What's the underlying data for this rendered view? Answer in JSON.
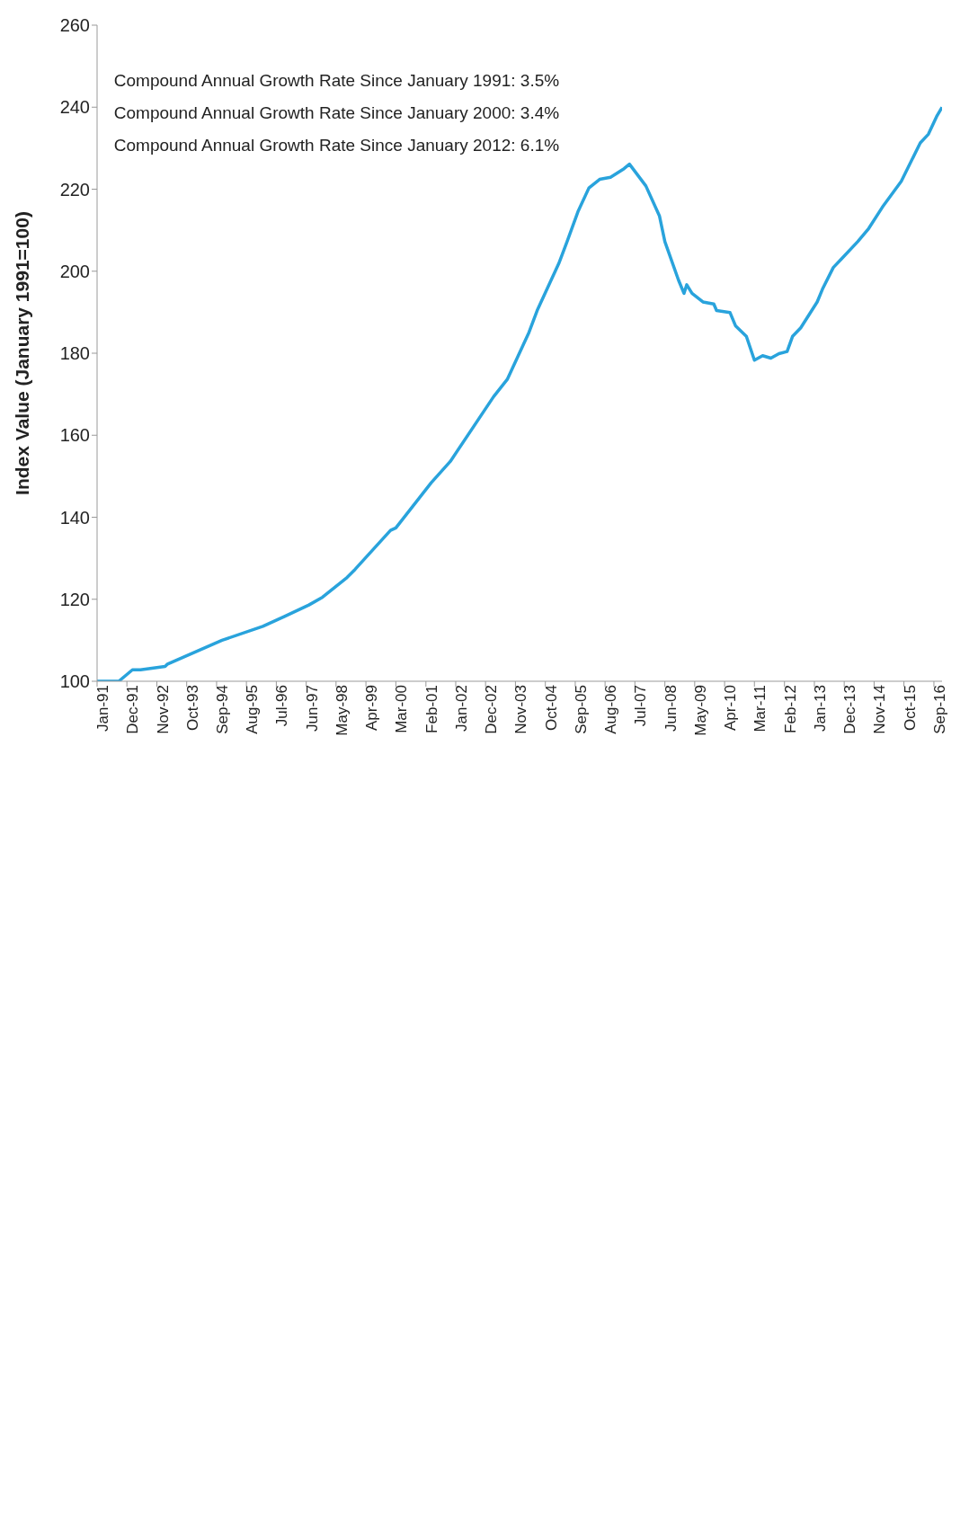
{
  "chart_data": {
    "type": "line",
    "ylabel": "Index Value (January 1991=100)",
    "annotations": [
      "Compound Annual Growth Rate Since January 1991:  3.5%",
      "Compound Annual Growth Rate Since January 2000:  3.4%",
      "Compound Annual Growth Rate Since January 2012:  6.1%"
    ],
    "x": [
      "1991-01",
      "1991-09",
      "1992-02",
      "1992-05",
      "1993-02",
      "1993-03",
      "1994-11",
      "1996-02",
      "1996-10",
      "1997-07",
      "1997-12",
      "1998-09",
      "1998-12",
      "2000-01",
      "2000-03",
      "2001-04",
      "2001-11",
      "2003-03",
      "2003-08",
      "2004-04",
      "2004-07",
      "2005-03",
      "2005-06",
      "2005-10",
      "2006-02",
      "2006-06",
      "2006-10",
      "2007-03",
      "2007-05",
      "2007-11",
      "2008-04",
      "2008-06",
      "2008-11",
      "2009-01",
      "2009-02",
      "2009-04",
      "2009-08",
      "2009-12",
      "2010-01",
      "2010-06",
      "2010-08",
      "2010-12",
      "2011-03",
      "2011-06",
      "2011-09",
      "2011-12",
      "2012-03",
      "2012-05",
      "2012-08",
      "2013-02",
      "2013-04",
      "2013-08",
      "2013-11",
      "2014-05",
      "2014-09",
      "2015-02",
      "2015-09",
      "2016-04",
      "2016-07",
      "2016-10",
      "2016-12"
    ],
    "series": [
      {
        "color": "#29a3dc",
        "values": [
          100,
          100,
          102.8,
          102.8,
          103.6,
          104.2,
          110,
          113.4,
          115.8,
          118.6,
          120.5,
          125.3,
          127.3,
          136.8,
          137.4,
          148.4,
          153.6,
          169.4,
          173.6,
          185.1,
          190.4,
          201.9,
          207.2,
          214.5,
          220.3,
          222.4,
          222.9,
          225,
          226.1,
          220.8,
          213.5,
          207.2,
          197.8,
          194.6,
          196.7,
          194.6,
          192.5,
          192,
          190.4,
          189.9,
          186.7,
          184.1,
          178.3,
          179.4,
          178.8,
          179.9,
          180.4,
          184.1,
          186.2,
          192.5,
          195.6,
          200.9,
          203,
          207.2,
          210.4,
          215.6,
          221.9,
          231.3,
          233.4,
          237.7,
          240
        ]
      }
    ],
    "xlim": [
      "1991-01",
      "2016-12"
    ],
    "xticks": [
      {
        "value": "1991-01",
        "label": "Jan-91"
      },
      {
        "value": "1991-12",
        "label": "Dec-91"
      },
      {
        "value": "1992-11",
        "label": "Nov-92"
      },
      {
        "value": "1993-10",
        "label": "Oct-93"
      },
      {
        "value": "1994-09",
        "label": "Sep-94"
      },
      {
        "value": "1995-08",
        "label": "Aug-95"
      },
      {
        "value": "1996-07",
        "label": "Jul-96"
      },
      {
        "value": "1997-06",
        "label": "Jun-97"
      },
      {
        "value": "1998-05",
        "label": "May-98"
      },
      {
        "value": "1999-04",
        "label": "Apr-99"
      },
      {
        "value": "2000-03",
        "label": "Mar-00"
      },
      {
        "value": "2001-02",
        "label": "Feb-01"
      },
      {
        "value": "2002-01",
        "label": "Jan-02"
      },
      {
        "value": "2002-12",
        "label": "Dec-02"
      },
      {
        "value": "2003-11",
        "label": "Nov-03"
      },
      {
        "value": "2004-10",
        "label": "Oct-04"
      },
      {
        "value": "2005-09",
        "label": "Sep-05"
      },
      {
        "value": "2006-08",
        "label": "Aug-06"
      },
      {
        "value": "2007-07",
        "label": "Jul-07"
      },
      {
        "value": "2008-06",
        "label": "Jun-08"
      },
      {
        "value": "2009-05",
        "label": "May-09"
      },
      {
        "value": "2010-04",
        "label": "Apr-10"
      },
      {
        "value": "2011-03",
        "label": "Mar-11"
      },
      {
        "value": "2012-02",
        "label": "Feb-12"
      },
      {
        "value": "2013-01",
        "label": "Jan-13"
      },
      {
        "value": "2013-12",
        "label": "Dec-13"
      },
      {
        "value": "2014-11",
        "label": "Nov-14"
      },
      {
        "value": "2015-10",
        "label": "Oct-15"
      },
      {
        "value": "2016-09",
        "label": "Sep-16"
      }
    ],
    "ylim": [
      100,
      260
    ],
    "yticks": [
      100,
      120,
      140,
      160,
      180,
      200,
      220,
      240,
      260
    ],
    "line_style": "solid"
  }
}
